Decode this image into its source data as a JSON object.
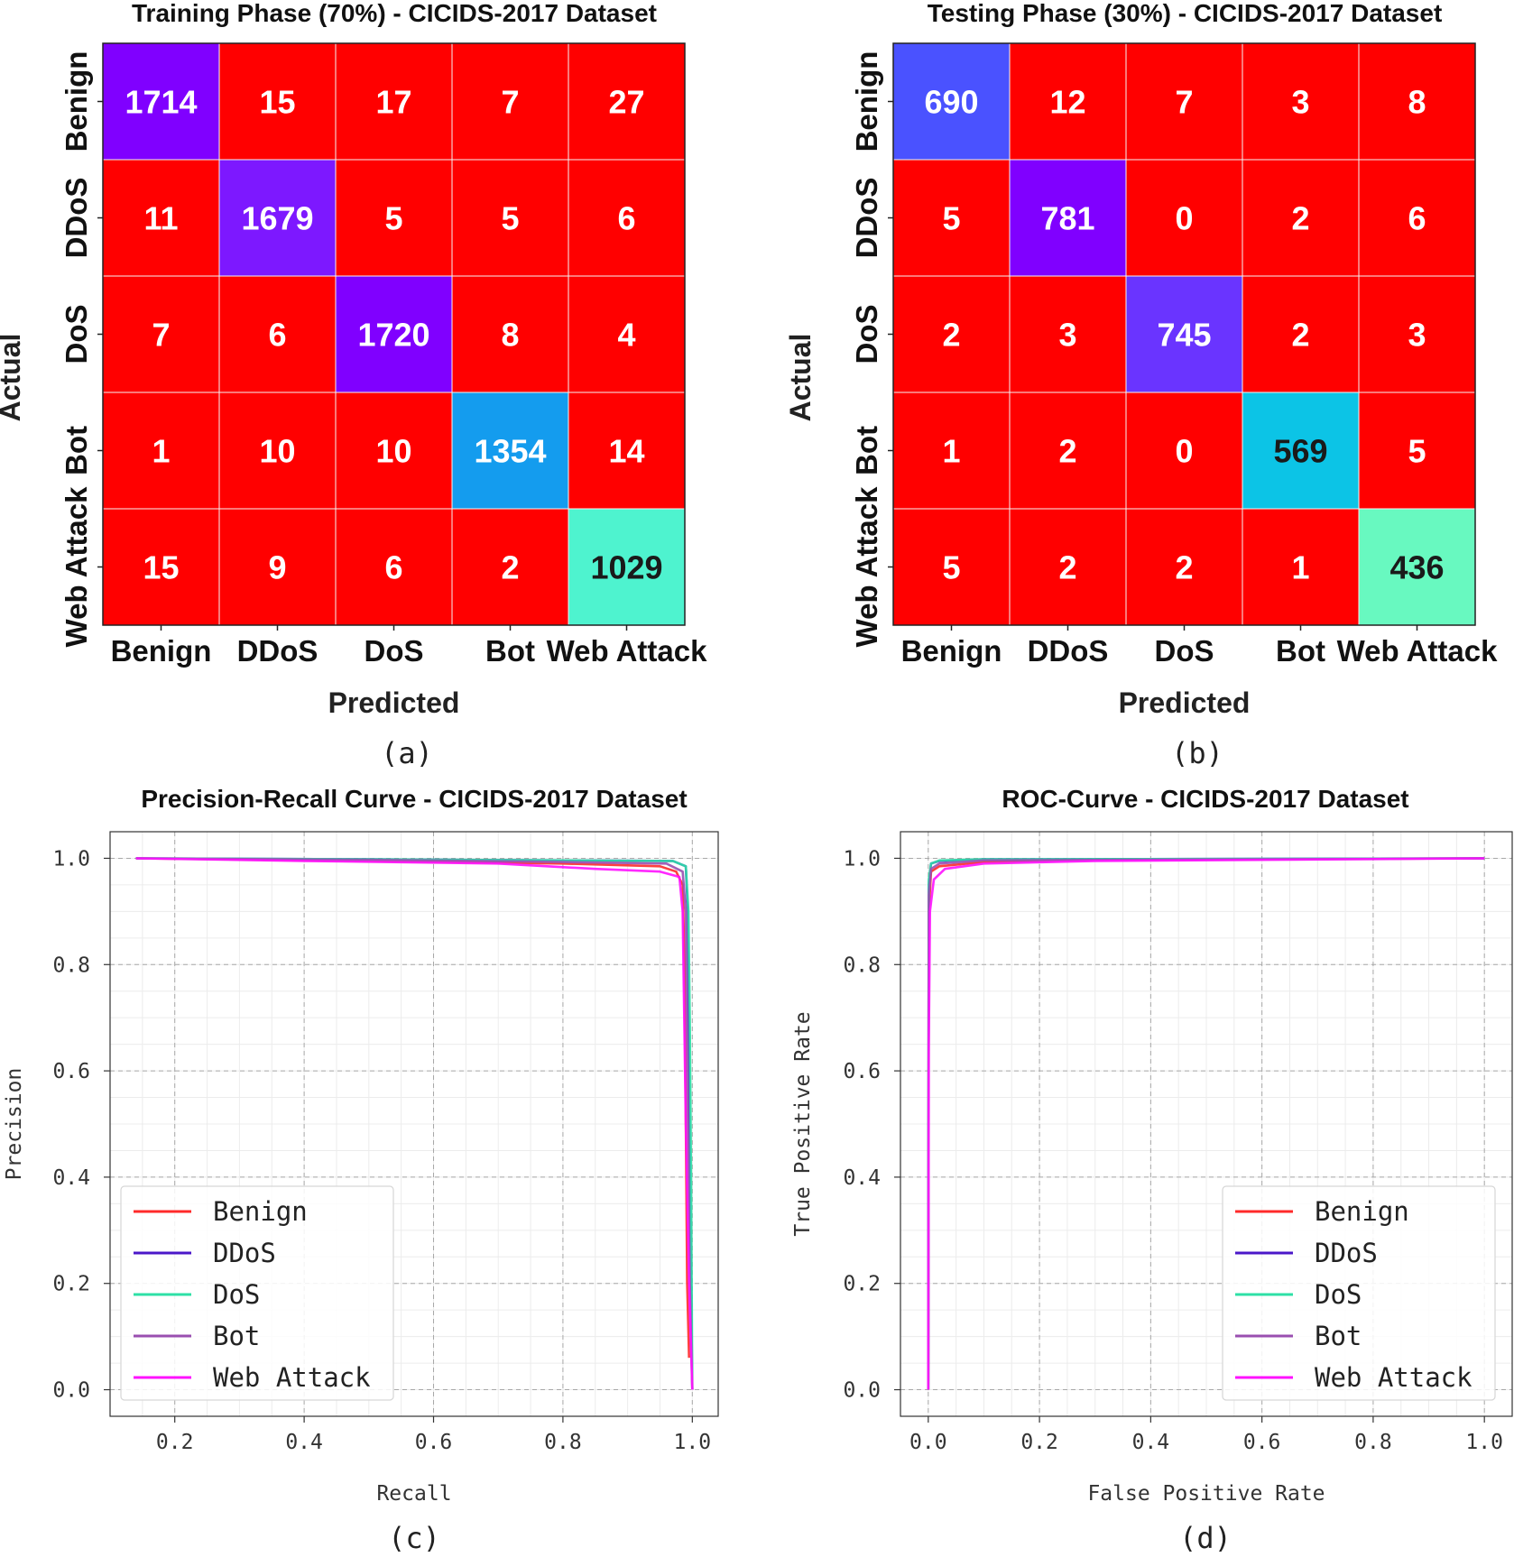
{
  "colors": {
    "cell_red": "#ff0000",
    "grid_line": "#c8c8c8",
    "axis_line": "#333333",
    "series": [
      "#ff2a2a",
      "#4b17c9",
      "#2ee0a6",
      "#9a4fb0",
      "#ff12ff"
    ]
  },
  "chart_data": [
    {
      "id": "a",
      "type": "heatmap",
      "title": "Training Phase (70%) - CICIDS-2017 Dataset",
      "xlabel": "Predicted",
      "ylabel": "Actual",
      "panel_label": "(a)",
      "x_categories": [
        "Benign",
        "DDoS",
        "DoS",
        "Bot",
        "Web Attack"
      ],
      "y_categories": [
        "Benign",
        "DDoS",
        "DoS",
        "Bot",
        "Web Attack"
      ],
      "values": [
        [
          1714,
          15,
          17,
          7,
          27
        ],
        [
          11,
          1679,
          5,
          5,
          6
        ],
        [
          7,
          6,
          1720,
          8,
          4
        ],
        [
          1,
          10,
          10,
          1354,
          14
        ],
        [
          15,
          9,
          6,
          2,
          1029
        ]
      ],
      "diagonal_colors": [
        "#8000ff",
        "#7d18ff",
        "#8000ff",
        "#149cee",
        "#4ef3cf"
      ],
      "diagonal_text_dark": [
        false,
        false,
        false,
        false,
        true
      ]
    },
    {
      "id": "b",
      "type": "heatmap",
      "title": "Testing Phase (30%) - CICIDS-2017 Dataset",
      "xlabel": "Predicted",
      "ylabel": "Actual",
      "panel_label": "(b)",
      "x_categories": [
        "Benign",
        "DDoS",
        "DoS",
        "Bot",
        "Web Attack"
      ],
      "y_categories": [
        "Benign",
        "DDoS",
        "DoS",
        "Bot",
        "Web Attack"
      ],
      "values": [
        [
          690,
          12,
          7,
          3,
          8
        ],
        [
          5,
          781,
          0,
          2,
          6
        ],
        [
          2,
          3,
          745,
          2,
          3
        ],
        [
          1,
          2,
          0,
          569,
          5
        ],
        [
          5,
          2,
          2,
          1,
          436
        ]
      ],
      "diagonal_colors": [
        "#4a52ff",
        "#8000ff",
        "#6a34ff",
        "#0cc4e6",
        "#68f9c0"
      ],
      "diagonal_text_dark": [
        false,
        false,
        false,
        true,
        true
      ]
    },
    {
      "id": "c",
      "type": "line",
      "title": "Precision-Recall Curve - CICIDS-2017 Dataset",
      "xlabel": "Recall",
      "ylabel": "Precision",
      "panel_label": "(c)",
      "xlim": [
        0.1,
        1.04
      ],
      "ylim": [
        -0.05,
        1.05
      ],
      "x_ticks": [
        "0.2",
        "0.4",
        "0.6",
        "0.8",
        "1.0"
      ],
      "y_ticks": [
        "0.0",
        "0.2",
        "0.4",
        "0.6",
        "0.8",
        "1.0"
      ],
      "grid": true,
      "legend_position": "lower-left",
      "series": [
        {
          "name": "Benign",
          "points": [
            [
              0.14,
              1.0
            ],
            [
              0.5,
              0.995
            ],
            [
              0.8,
              0.99
            ],
            [
              0.95,
              0.985
            ],
            [
              0.975,
              0.975
            ],
            [
              0.985,
              0.95
            ],
            [
              0.988,
              0.8
            ],
            [
              0.99,
              0.5
            ],
            [
              0.992,
              0.2
            ],
            [
              0.995,
              0.06
            ]
          ]
        },
        {
          "name": "DDoS",
          "points": [
            [
              0.14,
              1.0
            ],
            [
              0.5,
              0.998
            ],
            [
              0.8,
              0.996
            ],
            [
              0.97,
              0.995
            ],
            [
              0.99,
              0.985
            ],
            [
              0.993,
              0.9
            ],
            [
              0.995,
              0.6
            ],
            [
              0.997,
              0.3
            ],
            [
              1.0,
              0.0
            ]
          ]
        },
        {
          "name": "DoS",
          "points": [
            [
              0.14,
              1.0
            ],
            [
              0.5,
              0.998
            ],
            [
              0.8,
              0.996
            ],
            [
              0.97,
              0.995
            ],
            [
              0.99,
              0.985
            ],
            [
              0.994,
              0.9
            ],
            [
              0.996,
              0.7
            ],
            [
              0.998,
              0.4
            ],
            [
              1.0,
              0.0
            ]
          ]
        },
        {
          "name": "Bot",
          "points": [
            [
              0.14,
              1.0
            ],
            [
              0.5,
              0.997
            ],
            [
              0.8,
              0.993
            ],
            [
              0.96,
              0.99
            ],
            [
              0.985,
              0.975
            ],
            [
              0.99,
              0.9
            ],
            [
              0.993,
              0.5
            ],
            [
              0.996,
              0.2
            ],
            [
              1.0,
              0.0
            ]
          ]
        },
        {
          "name": "Web Attack",
          "points": [
            [
              0.14,
              1.0
            ],
            [
              0.4,
              0.995
            ],
            [
              0.7,
              0.99
            ],
            [
              0.85,
              0.98
            ],
            [
              0.95,
              0.975
            ],
            [
              0.98,
              0.965
            ],
            [
              0.985,
              0.9
            ],
            [
              0.99,
              0.5
            ],
            [
              0.995,
              0.2
            ],
            [
              1.0,
              0.0
            ]
          ]
        }
      ]
    },
    {
      "id": "d",
      "type": "line",
      "title": "ROC-Curve - CICIDS-2017 Dataset",
      "xlabel": "False Positive Rate",
      "ylabel": "True Positive Rate",
      "panel_label": "(d)",
      "xlim": [
        -0.05,
        1.05
      ],
      "ylim": [
        -0.05,
        1.05
      ],
      "x_ticks": [
        "0.0",
        "0.2",
        "0.4",
        "0.6",
        "0.8",
        "1.0"
      ],
      "y_ticks": [
        "0.0",
        "0.2",
        "0.4",
        "0.6",
        "0.8",
        "1.0"
      ],
      "grid": true,
      "legend_position": "lower-right",
      "series": [
        {
          "name": "Benign",
          "points": [
            [
              0.0,
              0.0
            ],
            [
              0.001,
              0.9
            ],
            [
              0.005,
              0.975
            ],
            [
              0.02,
              0.985
            ],
            [
              0.1,
              0.993
            ],
            [
              0.3,
              0.997
            ],
            [
              1.0,
              1.0
            ]
          ]
        },
        {
          "name": "DDoS",
          "points": [
            [
              0.0,
              0.0
            ],
            [
              0.001,
              0.95
            ],
            [
              0.005,
              0.99
            ],
            [
              0.02,
              0.995
            ],
            [
              0.1,
              0.998
            ],
            [
              1.0,
              1.0
            ]
          ]
        },
        {
          "name": "DoS",
          "points": [
            [
              0.0,
              0.0
            ],
            [
              0.001,
              0.96
            ],
            [
              0.005,
              0.99
            ],
            [
              0.02,
              0.996
            ],
            [
              0.1,
              0.998
            ],
            [
              1.0,
              1.0
            ]
          ]
        },
        {
          "name": "Bot",
          "points": [
            [
              0.0,
              0.0
            ],
            [
              0.001,
              0.93
            ],
            [
              0.005,
              0.98
            ],
            [
              0.02,
              0.99
            ],
            [
              0.1,
              0.996
            ],
            [
              1.0,
              1.0
            ]
          ]
        },
        {
          "name": "Web Attack",
          "points": [
            [
              0.0,
              0.0
            ],
            [
              0.001,
              0.65
            ],
            [
              0.003,
              0.9
            ],
            [
              0.01,
              0.96
            ],
            [
              0.03,
              0.98
            ],
            [
              0.1,
              0.99
            ],
            [
              0.3,
              0.995
            ],
            [
              1.0,
              1.0
            ]
          ]
        }
      ]
    }
  ]
}
